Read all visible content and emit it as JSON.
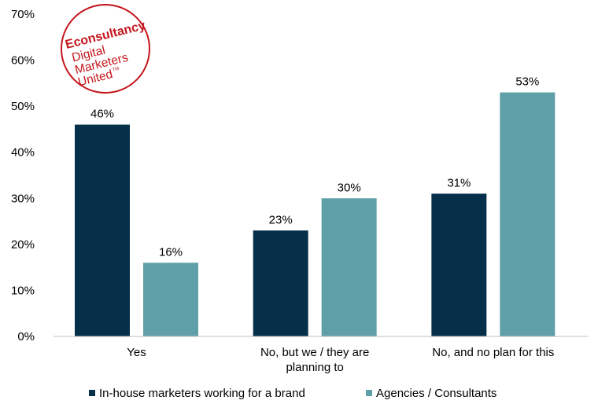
{
  "chart_data": {
    "type": "bar",
    "title": "",
    "xlabel": "",
    "ylabel": "",
    "ylim": [
      0,
      70
    ],
    "yticks": [
      "0%",
      "10%",
      "20%",
      "30%",
      "40%",
      "50%",
      "60%",
      "70%"
    ],
    "categories": [
      [
        "Yes"
      ],
      [
        "No, but we / they are",
        "planning to"
      ],
      [
        "No, and no plan for this"
      ]
    ],
    "series": [
      {
        "name": "In-house marketers working for a brand",
        "values": [
          46,
          23,
          31
        ],
        "labels": [
          "46%",
          "23%",
          "31%"
        ],
        "color": "#06304a"
      },
      {
        "name": "Agencies / Consultants",
        "values": [
          16,
          30,
          53
        ],
        "labels": [
          "16%",
          "30%",
          "53%"
        ],
        "color": "#5fa0a8"
      }
    ],
    "grid": false,
    "legend_position": "bottom"
  },
  "logo": {
    "brand": "Econsultancy",
    "line1": "Digital",
    "line2": "Marketers",
    "line3": "United",
    "tm": "TM"
  }
}
